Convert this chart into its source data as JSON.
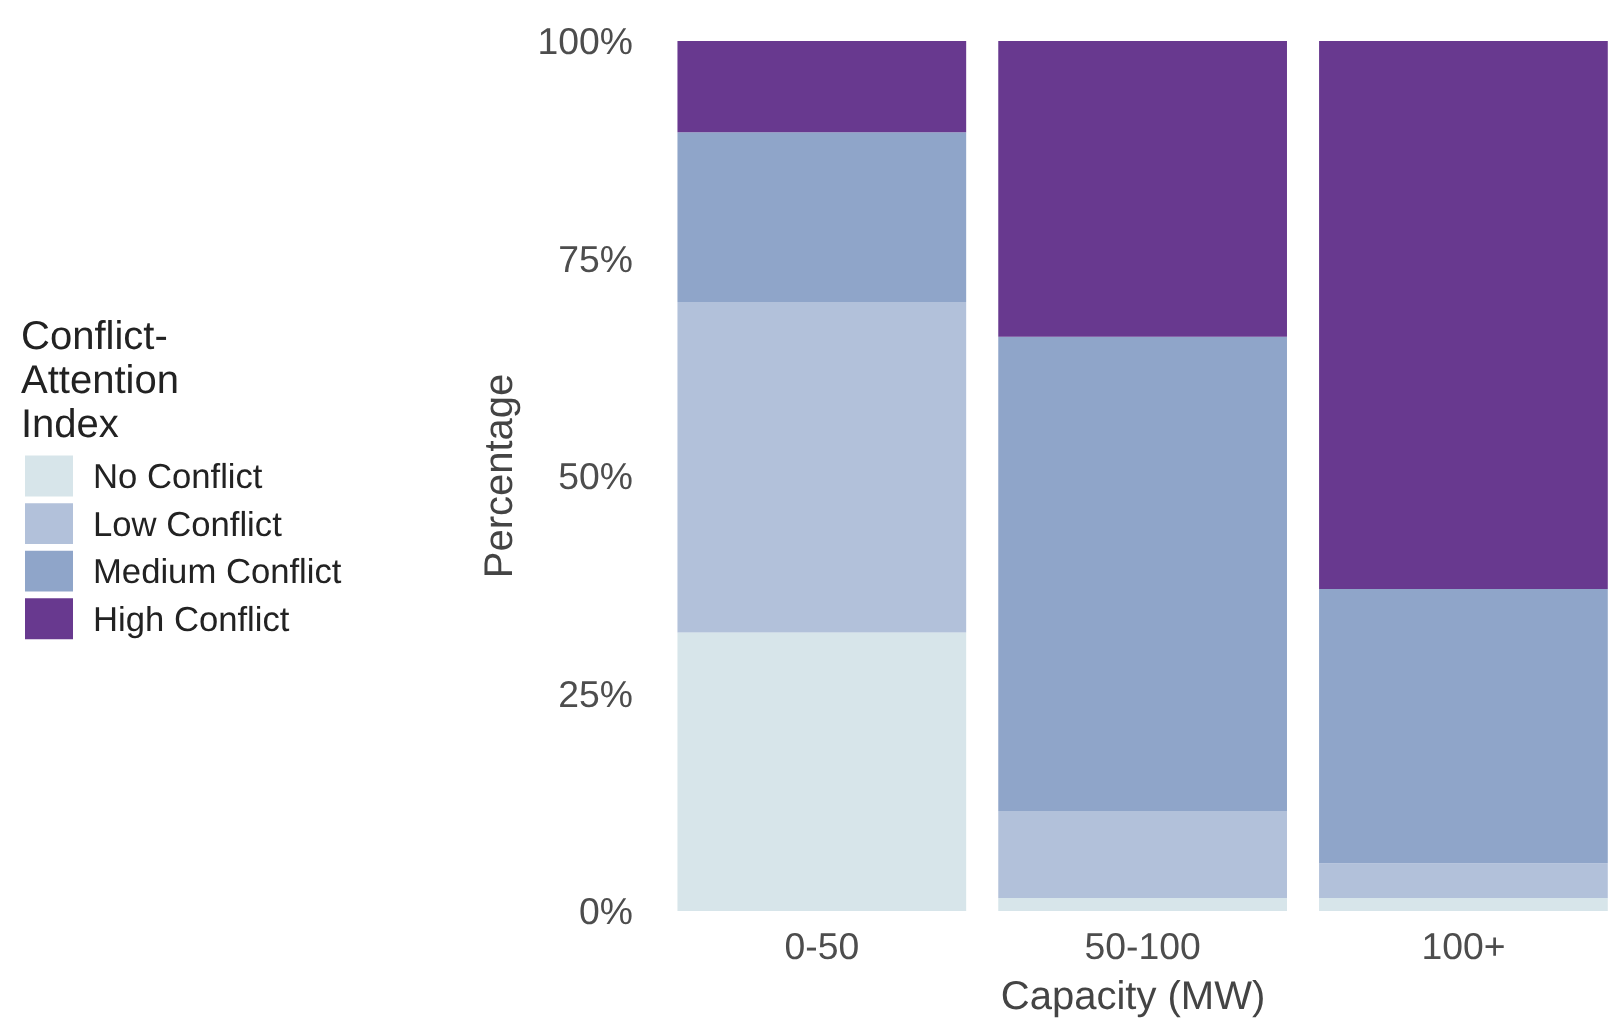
{
  "chart_data": {
    "type": "bar",
    "stacked": true,
    "xlabel": "Capacity (MW)",
    "ylabel": "Percentage",
    "legend_title": "Conflict-Attention Index",
    "legend": "left",
    "categories": [
      "0-50",
      "50-100",
      "100+"
    ],
    "series": [
      {
        "name": "No Conflict",
        "color": "#d7e5ea",
        "values": [
          32,
          1.5,
          1.5
        ]
      },
      {
        "name": "Low Conflict",
        "color": "#b2c1da",
        "values": [
          38,
          10,
          4
        ]
      },
      {
        "name": "Medium Conflict",
        "color": "#8fa5c9",
        "values": [
          19.5,
          54.5,
          31.5
        ]
      },
      {
        "name": "High Conflict",
        "color": "#68398f",
        "values": [
          10.5,
          34,
          63
        ]
      }
    ],
    "ylim": [
      0,
      100
    ],
    "yticks": [
      {
        "value": 0,
        "label": "0%"
      },
      {
        "value": 25,
        "label": "25%"
      },
      {
        "value": 50,
        "label": "50%"
      },
      {
        "value": 75,
        "label": "75%"
      },
      {
        "value": 100,
        "label": "100%"
      }
    ],
    "grid": false
  }
}
